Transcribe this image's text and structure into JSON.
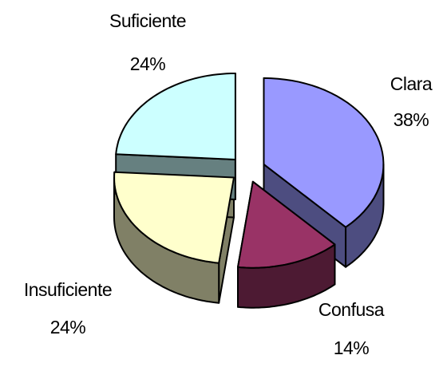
{
  "chart_data": {
    "type": "pie",
    "categories": [
      "Clara",
      "Confusa",
      "Insuficiente",
      "Suficiente"
    ],
    "values": [
      38,
      14,
      24,
      24
    ],
    "value_labels": [
      "38%",
      "14%",
      "24%",
      "24%"
    ],
    "colors": [
      "#9999ff",
      "#993366",
      "#ffffcc",
      "#ccffff"
    ]
  }
}
